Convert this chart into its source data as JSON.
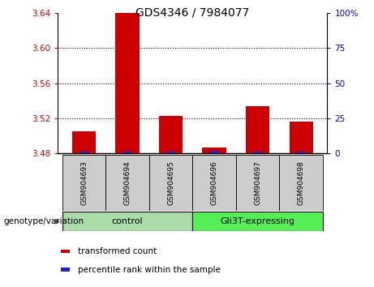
{
  "title": "GDS4346 / 7984077",
  "samples": [
    "GSM904693",
    "GSM904694",
    "GSM904695",
    "GSM904696",
    "GSM904697",
    "GSM904698"
  ],
  "red_values": [
    3.505,
    3.64,
    3.523,
    3.487,
    3.534,
    3.516
  ],
  "blue_values": [
    1.5,
    1.5,
    1.5,
    2.0,
    1.5,
    1.5
  ],
  "ylim_left": [
    3.48,
    3.64
  ],
  "ylim_right": [
    0,
    100
  ],
  "yticks_left": [
    3.48,
    3.52,
    3.56,
    3.6,
    3.64
  ],
  "yticks_right": [
    0,
    25,
    50,
    75,
    100
  ],
  "ytick_labels_left": [
    "3.48",
    "3.52",
    "3.56",
    "3.60",
    "3.64"
  ],
  "ytick_labels_right": [
    "0",
    "25",
    "50",
    "75",
    "100%"
  ],
  "groups": [
    {
      "label": "control",
      "samples": [
        0,
        1,
        2
      ]
    },
    {
      "label": "Gli3T-expressing",
      "samples": [
        3,
        4,
        5
      ]
    }
  ],
  "red_color": "#cc0000",
  "blue_color": "#2222cc",
  "legend_items": [
    {
      "color": "#cc0000",
      "label": "transformed count"
    },
    {
      "color": "#2222cc",
      "label": "percentile rank within the sample"
    }
  ],
  "left_label_color": "#cc0000",
  "right_label_color": "#0000cc",
  "group_color_control": "#aaddaa",
  "group_color_gli": "#55ee55",
  "sample_box_color": "#cccccc",
  "genotype_label": "genotype/variation"
}
